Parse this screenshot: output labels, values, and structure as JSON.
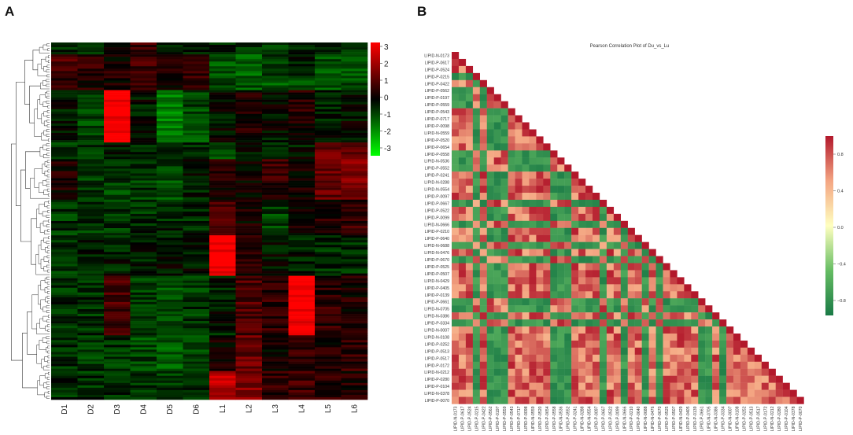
{
  "panels": {
    "a": "A",
    "b": "B"
  },
  "chart_data": [
    {
      "type": "heatmap",
      "id": "A",
      "title": "",
      "columns": [
        "D1",
        "D2",
        "D3",
        "D4",
        "D5",
        "D6",
        "L1",
        "L2",
        "L3",
        "L4",
        "L5",
        "L6"
      ],
      "color_scale": {
        "min": -3,
        "max": 3,
        "low_color": "#00ff00",
        "mid_color": "#000000",
        "high_color": "#ff0000"
      },
      "colorbar_ticks": [
        "3",
        "2",
        "1",
        "0",
        "-1",
        "-2",
        "-3"
      ],
      "row_clusters": [
        {
          "weight": 2,
          "means": [
            -0.6,
            -0.4,
            -0.2,
            0.6,
            -0.3,
            -0.4,
            -0.4,
            -0.6,
            -0.6,
            -0.5,
            -0.4,
            -0.4
          ]
        },
        {
          "weight": 4,
          "means": [
            0.9,
            0.6,
            0.3,
            0.8,
            0.5,
            0.6,
            -0.9,
            -1.2,
            -0.6,
            -0.4,
            -1.0,
            -1.2
          ]
        },
        {
          "weight": 2,
          "means": [
            0.4,
            0.4,
            0.2,
            0.5,
            0.2,
            0.4,
            -0.8,
            -1.0,
            -1.0,
            -1.1,
            -0.9,
            -0.9
          ]
        },
        {
          "weight": 9,
          "means": [
            -0.3,
            -0.8,
            3.0,
            -0.2,
            -1.4,
            -0.8,
            -0.1,
            0.3,
            -0.1,
            0.4,
            -0.3,
            -0.1
          ]
        },
        {
          "weight": 3,
          "means": [
            -0.6,
            -0.5,
            -0.3,
            -0.6,
            -0.6,
            -0.5,
            -0.7,
            -0.2,
            -0.3,
            -0.2,
            1.2,
            1.0
          ]
        },
        {
          "weight": 7,
          "means": [
            0.3,
            -0.6,
            -0.7,
            -0.6,
            -0.8,
            -0.3,
            0.3,
            0.2,
            0.6,
            0.2,
            1.2,
            1.5
          ]
        },
        {
          "weight": 6,
          "means": [
            -0.6,
            -0.6,
            -0.6,
            -0.5,
            -0.4,
            -0.4,
            0.8,
            0.2,
            -0.7,
            0.3,
            0.3,
            0.6
          ]
        },
        {
          "weight": 7,
          "means": [
            -0.6,
            -0.4,
            -0.3,
            -0.3,
            -0.2,
            -0.2,
            3.0,
            0.4,
            -0.2,
            -0.3,
            -0.5,
            -0.4
          ]
        },
        {
          "weight": 10,
          "means": [
            -0.5,
            -0.5,
            0.8,
            -0.6,
            -1.0,
            -0.6,
            -0.3,
            0.9,
            0.5,
            3.0,
            0.5,
            0.3
          ]
        },
        {
          "weight": 6,
          "means": [
            -0.5,
            -0.6,
            -0.6,
            -0.8,
            -1.1,
            -0.9,
            0.1,
            1.2,
            0.2,
            0.6,
            0.3,
            0.6
          ]
        },
        {
          "weight": 5,
          "means": [
            -0.5,
            -0.5,
            -0.4,
            -0.6,
            -0.6,
            -0.5,
            2.2,
            1.5,
            0.5,
            0.7,
            0.4,
            0.4
          ]
        }
      ]
    },
    {
      "type": "heatmap",
      "id": "B",
      "title": "Pearson Correlation Plot of Du_vs_Lu",
      "lipids": [
        "LIPID-N-0173",
        "LIPID-P-0617",
        "LIPID-P-0524",
        "LIPID-P-0215",
        "LIPID-P-0422",
        "LIPID-P-0562",
        "LIPID-P-0197",
        "LIPID-P-0559",
        "LIPID-P-0543",
        "LIPID-P-0717",
        "LIPID-P-0098",
        "LIPID-N-0559",
        "LIPID-P-0520",
        "LIPID-P-0654",
        "LIPID-P-0558",
        "LIPID-N-0536",
        "LIPID-P-0552",
        "LIPID-P-0241",
        "LIPID-N-0288",
        "LIPID-N-0554",
        "LIPID-P-0097",
        "LIPID-P-0667",
        "LIPID-P-0522",
        "LIPID-P-0099",
        "LIPID-N-0666",
        "LIPID-P-0210",
        "LIPID-P-0640",
        "LIPID-N-0688",
        "LIPID-N-0476",
        "LIPID-P-0670",
        "LIPID-P-0525",
        "LIPID-P-0507",
        "LIPID-N-0429",
        "LIPID-P-0405",
        "LIPID-P-0139",
        "LIPID-P-0661",
        "LIPID-N-0705",
        "LIPID-N-0386",
        "LIPID-P-0334",
        "LIPID-N-0007",
        "LIPID-N-0108",
        "LIPID-P-0252",
        "LIPID-P-0513",
        "LIPID-P-0517",
        "LIPID-P-0172",
        "LIPID-N-0212",
        "LIPID-P-0280",
        "LIPID-P-0104",
        "LIPID-N-0378",
        "LIPID-P-0070"
      ],
      "groups": [
        1,
        1,
        1,
        2,
        1,
        2,
        2,
        2,
        1,
        1,
        1,
        1,
        1,
        1,
        2,
        2,
        2,
        1,
        1,
        1,
        1,
        2,
        1,
        1,
        2,
        1,
        1,
        2,
        1,
        2,
        1,
        1,
        1,
        1,
        1,
        2,
        2,
        1,
        2,
        1,
        1,
        1,
        1,
        1,
        1,
        1,
        1,
        1,
        1,
        1
      ],
      "group_correlation": {
        "same_group": 0.7,
        "different_group": -0.8
      },
      "diagonal": 1.0,
      "colorbar_ticks": [
        "0.8",
        "0.4",
        "0.0",
        "-0.4",
        "-0.8"
      ],
      "color_scale": {
        "min": -1,
        "max": 1,
        "low_color": "#1a7a46",
        "mid_color": "#ffffc0",
        "high_color": "#b2182b"
      }
    }
  ]
}
